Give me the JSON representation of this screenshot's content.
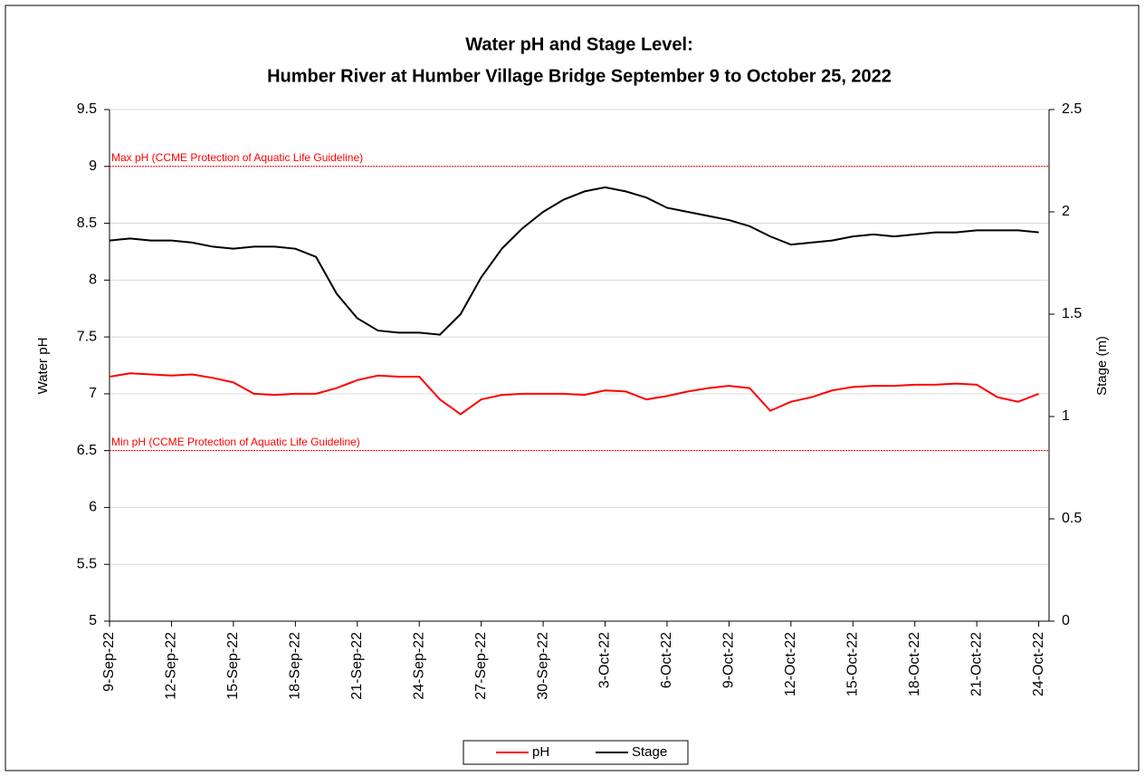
{
  "chart_data": {
    "type": "line",
    "title": [
      "Water pH and Stage Level:",
      "Humber River at Humber Village Bridge September 9 to October 25, 2022"
    ],
    "y_label": "Water pH",
    "y2_label": "Stage (m)",
    "x": [
      "2022-09-09",
      "2022-09-10",
      "2022-09-11",
      "2022-09-12",
      "2022-09-13",
      "2022-09-14",
      "2022-09-15",
      "2022-09-16",
      "2022-09-17",
      "2022-09-18",
      "2022-09-19",
      "2022-09-20",
      "2022-09-21",
      "2022-09-22",
      "2022-09-23",
      "2022-09-24",
      "2022-09-25",
      "2022-09-26",
      "2022-09-27",
      "2022-09-28",
      "2022-09-29",
      "2022-09-30",
      "2022-10-01",
      "2022-10-02",
      "2022-10-03",
      "2022-10-04",
      "2022-10-05",
      "2022-10-06",
      "2022-10-07",
      "2022-10-08",
      "2022-10-09",
      "2022-10-10",
      "2022-10-11",
      "2022-10-12",
      "2022-10-13",
      "2022-10-14",
      "2022-10-15",
      "2022-10-16",
      "2022-10-17",
      "2022-10-18",
      "2022-10-19",
      "2022-10-20",
      "2022-10-21",
      "2022-10-22",
      "2022-10-23",
      "2022-10-24"
    ],
    "series": [
      {
        "name": "pH",
        "color": "#ff0000",
        "axis": "y",
        "values": [
          7.15,
          7.18,
          7.17,
          7.16,
          7.17,
          7.14,
          7.1,
          7.0,
          6.99,
          7.0,
          7.0,
          7.05,
          7.12,
          7.16,
          7.15,
          7.15,
          6.95,
          6.82,
          6.95,
          6.99,
          7.0,
          7.0,
          7.0,
          6.99,
          7.03,
          7.02,
          6.95,
          6.98,
          7.02,
          7.05,
          7.07,
          7.05,
          6.85,
          6.93,
          6.97,
          7.03,
          7.06,
          7.07,
          7.07,
          7.08,
          7.08,
          7.09,
          7.08,
          6.97,
          6.93,
          7.0
        ]
      },
      {
        "name": "Stage",
        "color": "#000000",
        "axis": "y2",
        "values": [
          1.86,
          1.87,
          1.86,
          1.86,
          1.85,
          1.83,
          1.82,
          1.83,
          1.83,
          1.82,
          1.78,
          1.6,
          1.48,
          1.42,
          1.41,
          1.41,
          1.4,
          1.5,
          1.68,
          1.82,
          1.92,
          2.0,
          2.06,
          2.1,
          2.12,
          2.1,
          2.07,
          2.02,
          2.0,
          1.98,
          1.96,
          1.93,
          1.88,
          1.84,
          1.85,
          1.86,
          1.88,
          1.89,
          1.88,
          1.89,
          1.9,
          1.9,
          1.91,
          1.91,
          1.91,
          1.9
        ]
      }
    ],
    "xlim": [
      "2022-09-09",
      "2022-10-24T12:00"
    ],
    "xticks": [
      {
        "value": "2022-09-09",
        "label": "9-Sep-22"
      },
      {
        "value": "2022-09-12",
        "label": "12-Sep-22"
      },
      {
        "value": "2022-09-15",
        "label": "15-Sep-22"
      },
      {
        "value": "2022-09-18",
        "label": "18-Sep-22"
      },
      {
        "value": "2022-09-21",
        "label": "21-Sep-22"
      },
      {
        "value": "2022-09-24",
        "label": "24-Sep-22"
      },
      {
        "value": "2022-09-27",
        "label": "27-Sep-22"
      },
      {
        "value": "2022-09-30",
        "label": "30-Sep-22"
      },
      {
        "value": "2022-10-03",
        "label": "3-Oct-22"
      },
      {
        "value": "2022-10-06",
        "label": "6-Oct-22"
      },
      {
        "value": "2022-10-09",
        "label": "9-Oct-22"
      },
      {
        "value": "2022-10-12",
        "label": "12-Oct-22"
      },
      {
        "value": "2022-10-15",
        "label": "15-Oct-22"
      },
      {
        "value": "2022-10-18",
        "label": "18-Oct-22"
      },
      {
        "value": "2022-10-21",
        "label": "21-Oct-22"
      },
      {
        "value": "2022-10-24",
        "label": "24-Oct-22"
      }
    ],
    "ylim": [
      5,
      9.5
    ],
    "yticks": [
      5,
      5.5,
      6,
      6.5,
      7,
      7.5,
      8,
      8.5,
      9,
      9.5
    ],
    "y2lim": [
      0,
      2.5
    ],
    "y2ticks": [
      0,
      0.5,
      1,
      1.5,
      2,
      2.5
    ],
    "grid": true,
    "legend": "bottom",
    "reference_lines": [
      {
        "value": 9,
        "label": "Max pH (CCME Protection of Aquatic Life Guideline)",
        "color": "#ff0000"
      },
      {
        "value": 6.5,
        "label": "Min pH (CCME Protection of Aquatic Life Guideline)",
        "color": "#ff0000"
      }
    ]
  }
}
